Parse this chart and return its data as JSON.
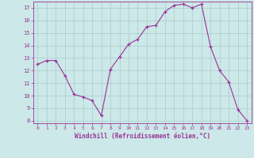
{
  "x": [
    0,
    1,
    2,
    3,
    4,
    5,
    6,
    7,
    8,
    9,
    10,
    11,
    12,
    13,
    14,
    15,
    16,
    17,
    18,
    19,
    20,
    21,
    22,
    23
  ],
  "y": [
    12.5,
    12.8,
    12.8,
    11.6,
    10.1,
    9.9,
    9.6,
    8.4,
    12.1,
    13.1,
    14.1,
    14.5,
    15.5,
    15.6,
    16.7,
    17.2,
    17.3,
    17.0,
    17.3,
    13.9,
    12.0,
    11.1,
    8.9,
    8.0
  ],
  "line_color": "#993399",
  "marker": "+",
  "marker_color": "#993399",
  "bg_color": "#cce8e8",
  "grid_color": "#aacccc",
  "tick_color": "#993399",
  "label_color": "#993399",
  "xlabel": "Windchill (Refroidissement éolien,°C)",
  "ylim": [
    7.8,
    17.5
  ],
  "xlim": [
    -0.5,
    23.5
  ],
  "yticks": [
    8,
    9,
    10,
    11,
    12,
    13,
    14,
    15,
    16,
    17
  ],
  "xticks": [
    0,
    1,
    2,
    3,
    4,
    5,
    6,
    7,
    8,
    9,
    10,
    11,
    12,
    13,
    14,
    15,
    16,
    17,
    18,
    19,
    20,
    21,
    22,
    23
  ]
}
